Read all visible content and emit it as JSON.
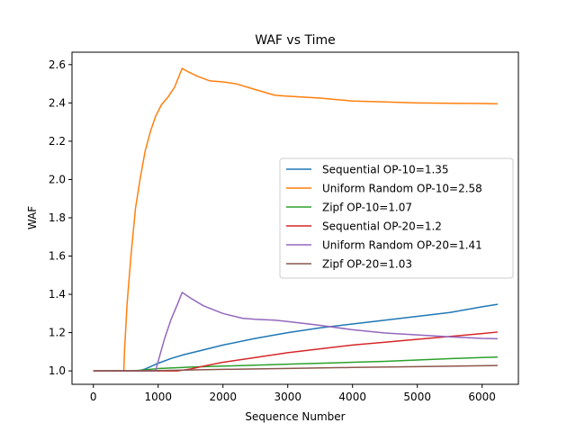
{
  "chart_data": {
    "type": "line",
    "title": "WAF vs Time",
    "xlabel": "Sequence Number",
    "ylabel": "WAF",
    "xlim": [
      -330,
      6560
    ],
    "ylim": [
      0.93,
      2.665
    ],
    "xticks": [
      0,
      1000,
      2000,
      3000,
      4000,
      5000,
      6000
    ],
    "xtick_labels": [
      "0",
      "1000",
      "2000",
      "3000",
      "4000",
      "5000",
      "6000"
    ],
    "yticks": [
      1.0,
      1.2,
      1.4,
      1.6,
      1.8,
      2.0,
      2.2,
      2.4,
      2.6
    ],
    "ytick_labels": [
      "1.0",
      "1.2",
      "1.4",
      "1.6",
      "1.8",
      "2.0",
      "2.2",
      "2.4",
      "2.6"
    ],
    "grid": false,
    "legend_position": "center-right",
    "series": [
      {
        "name": "Sequential OP-10=1.35",
        "color": "#1f77b4",
        "points": [
          [
            0,
            1.0
          ],
          [
            700,
            1.0
          ],
          [
            800,
            1.01
          ],
          [
            900,
            1.025
          ],
          [
            1000,
            1.04
          ],
          [
            1200,
            1.065
          ],
          [
            1400,
            1.085
          ],
          [
            1700,
            1.11
          ],
          [
            2000,
            1.135
          ],
          [
            2500,
            1.17
          ],
          [
            3000,
            1.2
          ],
          [
            3500,
            1.225
          ],
          [
            4000,
            1.245
          ],
          [
            4500,
            1.265
          ],
          [
            5000,
            1.285
          ],
          [
            5500,
            1.305
          ],
          [
            6000,
            1.335
          ],
          [
            6240,
            1.348
          ]
        ]
      },
      {
        "name": "Uniform Random OP-10=2.58",
        "color": "#ff7f0e",
        "points": [
          [
            0,
            1.0
          ],
          [
            470,
            1.0
          ],
          [
            480,
            1.1
          ],
          [
            520,
            1.35
          ],
          [
            580,
            1.6
          ],
          [
            650,
            1.85
          ],
          [
            720,
            2.0
          ],
          [
            800,
            2.15
          ],
          [
            880,
            2.25
          ],
          [
            960,
            2.33
          ],
          [
            1050,
            2.39
          ],
          [
            1150,
            2.43
          ],
          [
            1250,
            2.48
          ],
          [
            1370,
            2.58
          ],
          [
            1450,
            2.565
          ],
          [
            1600,
            2.54
          ],
          [
            1800,
            2.515
          ],
          [
            2000,
            2.51
          ],
          [
            2200,
            2.5
          ],
          [
            2400,
            2.48
          ],
          [
            2600,
            2.46
          ],
          [
            2800,
            2.44
          ],
          [
            3000,
            2.435
          ],
          [
            3500,
            2.425
          ],
          [
            4000,
            2.41
          ],
          [
            4500,
            2.405
          ],
          [
            5000,
            2.4
          ],
          [
            5500,
            2.398
          ],
          [
            6000,
            2.397
          ],
          [
            6240,
            2.395
          ]
        ]
      },
      {
        "name": "Zipf OP-10=1.07",
        "color": "#2ca02c",
        "points": [
          [
            0,
            1.0
          ],
          [
            600,
            1.0
          ],
          [
            1000,
            1.012
          ],
          [
            1500,
            1.02
          ],
          [
            2000,
            1.025
          ],
          [
            2500,
            1.03
          ],
          [
            3000,
            1.035
          ],
          [
            3500,
            1.04
          ],
          [
            4000,
            1.045
          ],
          [
            4500,
            1.05
          ],
          [
            5000,
            1.057
          ],
          [
            5500,
            1.064
          ],
          [
            6000,
            1.07
          ],
          [
            6240,
            1.072
          ]
        ]
      },
      {
        "name": "Sequential OP-20=1.2",
        "color": "#d62728",
        "points": [
          [
            0,
            1.0
          ],
          [
            1300,
            1.0
          ],
          [
            1500,
            1.01
          ],
          [
            1700,
            1.025
          ],
          [
            2000,
            1.045
          ],
          [
            2500,
            1.07
          ],
          [
            3000,
            1.095
          ],
          [
            3500,
            1.115
          ],
          [
            4000,
            1.135
          ],
          [
            4500,
            1.15
          ],
          [
            5000,
            1.165
          ],
          [
            5500,
            1.18
          ],
          [
            6000,
            1.195
          ],
          [
            6240,
            1.203
          ]
        ]
      },
      {
        "name": "Uniform Random OP-20=1.41",
        "color": "#9467bd",
        "points": [
          [
            0,
            1.0
          ],
          [
            960,
            1.0
          ],
          [
            1000,
            1.05
          ],
          [
            1100,
            1.17
          ],
          [
            1200,
            1.27
          ],
          [
            1300,
            1.35
          ],
          [
            1370,
            1.41
          ],
          [
            1500,
            1.38
          ],
          [
            1700,
            1.34
          ],
          [
            2000,
            1.3
          ],
          [
            2300,
            1.275
          ],
          [
            2500,
            1.27
          ],
          [
            2800,
            1.265
          ],
          [
            3000,
            1.258
          ],
          [
            3500,
            1.238
          ],
          [
            4000,
            1.215
          ],
          [
            4500,
            1.198
          ],
          [
            5000,
            1.188
          ],
          [
            5500,
            1.178
          ],
          [
            6000,
            1.17
          ],
          [
            6240,
            1.168
          ]
        ]
      },
      {
        "name": "Zipf OP-20=1.03",
        "color": "#8c564b",
        "points": [
          [
            0,
            1.0
          ],
          [
            1000,
            1.002
          ],
          [
            2000,
            1.008
          ],
          [
            3000,
            1.013
          ],
          [
            4000,
            1.018
          ],
          [
            5000,
            1.022
          ],
          [
            6000,
            1.027
          ],
          [
            6240,
            1.028
          ]
        ]
      }
    ]
  }
}
